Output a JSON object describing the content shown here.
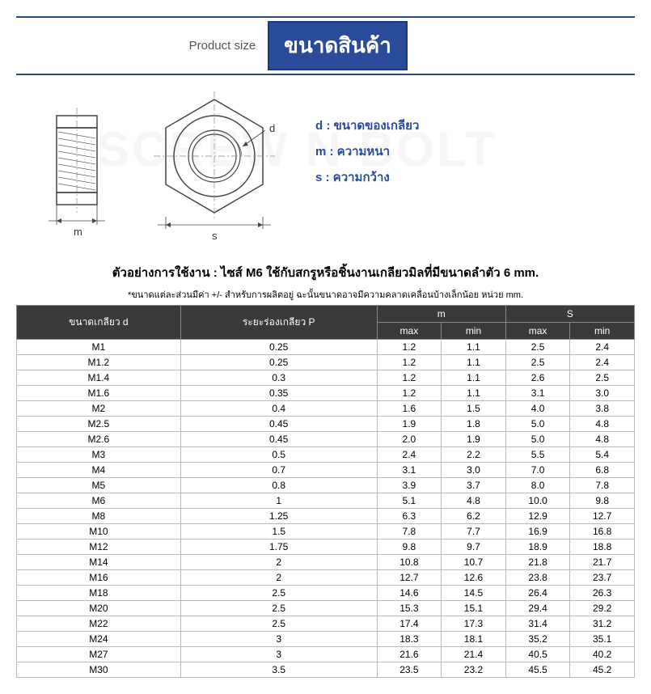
{
  "header": {
    "product_size_en": "Product size",
    "title_th": "ขนาดสินค้า"
  },
  "legend": {
    "d": "d : ขนาดของเกลียว",
    "m": "m : ความหนา",
    "s": "s : ความกว้าง"
  },
  "example": "ตัวอย่างการใช้งาน : ไซส์ M6 ใช้กับสกรูหรือชิ้นงานเกลียวมิลที่มีขนาดลำตัว 6 mm.",
  "note": "*ขนาดแต่ละส่วนมีค่า +/- สำหรับการผลิตอยู่ ฉะนั้นขนาดอาจมีความคลาดเคลื่อนบ้างเล็กน้อย หน่วย mm.",
  "diagram_labels": {
    "m": "m",
    "s": "s",
    "d": "d"
  },
  "watermark": "SCREW N BOLT",
  "table": {
    "headers": {
      "col1": "ขนาดเกลียว d",
      "col2": "ระยะร่องเกลียว P",
      "col3": "m",
      "col4": "S",
      "max": "max",
      "min": "min"
    },
    "rows": [
      [
        "M1",
        "0.25",
        "1.2",
        "1.1",
        "2.5",
        "2.4"
      ],
      [
        "M1.2",
        "0.25",
        "1.2",
        "1.1",
        "2.5",
        "2.4"
      ],
      [
        "M1.4",
        "0.3",
        "1.2",
        "1.1",
        "2.6",
        "2.5"
      ],
      [
        "M1.6",
        "0.35",
        "1.2",
        "1.1",
        "3.1",
        "3.0"
      ],
      [
        "M2",
        "0.4",
        "1.6",
        "1.5",
        "4.0",
        "3.8"
      ],
      [
        "M2.5",
        "0.45",
        "1.9",
        "1.8",
        "5.0",
        "4.8"
      ],
      [
        "M2.6",
        "0.45",
        "2.0",
        "1.9",
        "5.0",
        "4.8"
      ],
      [
        "M3",
        "0.5",
        "2.4",
        "2.2",
        "5.5",
        "5.4"
      ],
      [
        "M4",
        "0.7",
        "3.1",
        "3.0",
        "7.0",
        "6.8"
      ],
      [
        "M5",
        "0.8",
        "3.9",
        "3.7",
        "8.0",
        "7.8"
      ],
      [
        "M6",
        "1",
        "5.1",
        "4.8",
        "10.0",
        "9.8"
      ],
      [
        "M8",
        "1.25",
        "6.3",
        "6.2",
        "12.9",
        "12.7"
      ],
      [
        "M10",
        "1.5",
        "7.8",
        "7.7",
        "16.9",
        "16.8"
      ],
      [
        "M12",
        "1.75",
        "9.8",
        "9.7",
        "18.9",
        "18.8"
      ],
      [
        "M14",
        "2",
        "10.8",
        "10.7",
        "21.8",
        "21.7"
      ],
      [
        "M16",
        "2",
        "12.7",
        "12.6",
        "23.8",
        "23.7"
      ],
      [
        "M18",
        "2.5",
        "14.6",
        "14.5",
        "26.4",
        "26.3"
      ],
      [
        "M20",
        "2.5",
        "15.3",
        "15.1",
        "29.4",
        "29.2"
      ],
      [
        "M22",
        "2.5",
        "17.4",
        "17.3",
        "31.4",
        "31.2"
      ],
      [
        "M24",
        "3",
        "18.3",
        "18.1",
        "35.2",
        "35.1"
      ],
      [
        "M27",
        "3",
        "21.6",
        "21.4",
        "40.5",
        "40.2"
      ],
      [
        "M30",
        "3.5",
        "23.5",
        "23.2",
        "45.5",
        "45.2"
      ]
    ]
  },
  "colors": {
    "header_blue": "#2a4a9a",
    "border_blue": "#2a4a7a",
    "table_header_bg": "#3a3a3a",
    "table_border": "#bbbbbb"
  }
}
